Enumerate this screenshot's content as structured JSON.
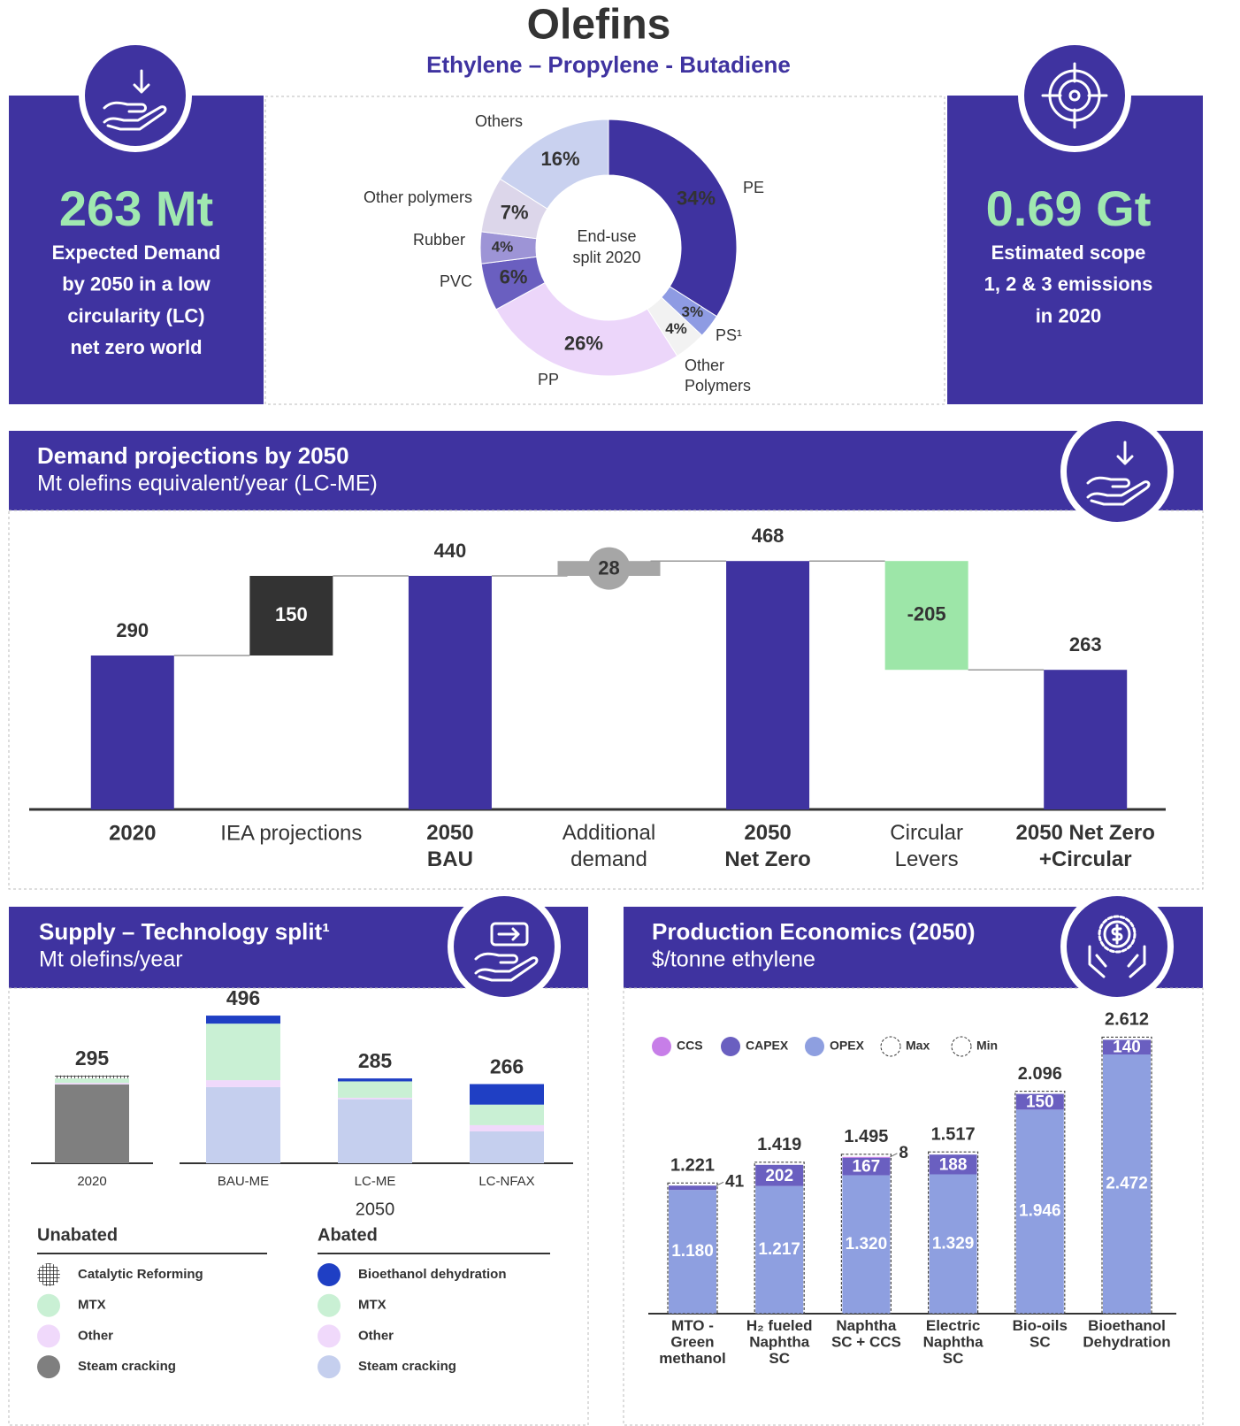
{
  "header": {
    "title": "Olefins",
    "subtitle": "Ethylene – Propylene - Butadiene"
  },
  "left_card": {
    "value": "263 Mt",
    "text": "Expected Demand\nby 2050 in a low\ncircularity (LC)\nnet zero world"
  },
  "right_card": {
    "value": "0.69 Gt",
    "text": "Estimated scope\n1, 2 & 3 emissions\nin 2020"
  },
  "sections": {
    "demand": {
      "title": "Demand projections by 2050",
      "subtitle": "Mt olefins equivalent/year (LC-ME)"
    },
    "supply": {
      "title": "Supply – Technology split¹",
      "subtitle": "Mt olefins/year"
    },
    "economics": {
      "title": "Production Economics (2050)",
      "subtitle": "$/tonne ethylene"
    }
  },
  "chart_data": [
    {
      "type": "donut",
      "center_label": "End-use\nsplit 2020",
      "categories": [
        "PE",
        "PS¹",
        "Other\nPolymers",
        "PP",
        "PVC",
        "Rubber",
        "Other polymers",
        "Others"
      ],
      "values": [
        34,
        3,
        4,
        26,
        6,
        4,
        7,
        16
      ],
      "value_labels": [
        "34%",
        "3%",
        "4%",
        "26%",
        "6%",
        "4%",
        "7%",
        "16%"
      ],
      "colors": [
        "#3f33a0",
        "#8e9be3",
        "#f2f2f2",
        "#ecd6fa",
        "#6a5fc0",
        "#9d94d6",
        "#dcd6ea",
        "#c9d1ef"
      ]
    },
    {
      "type": "waterfall",
      "categories": [
        "2020",
        "IEA projections",
        "2050\nBAU",
        "Additional\ndemand",
        "2050\nNet Zero",
        "Circular\nLevers",
        "2050 Net Zero\n+Circular"
      ],
      "values": [
        290,
        150,
        440,
        28,
        468,
        -205,
        263
      ],
      "measure": [
        "total",
        "relative",
        "total",
        "relative",
        "total",
        "relative",
        "total"
      ],
      "colors": [
        "#3f33a0",
        "#333333",
        "#3f33a0",
        "#a6a6a6",
        "#3f33a0",
        "#9de6a8",
        "#3f33a0"
      ],
      "ylim": [
        0,
        500
      ]
    },
    {
      "type": "stacked-bar",
      "categories": [
        "2020",
        "BAU-ME",
        "LC-ME",
        "LC-NFAX"
      ],
      "x_group_label": "2050",
      "totals": [
        295,
        496,
        285,
        266
      ],
      "ylim": [
        0,
        520
      ],
      "groups": [
        {
          "name": "Unabated",
          "series": [
            {
              "name": "Catalytic Reforming",
              "color": "hatch",
              "values": [
                10,
                0,
                0,
                0
              ]
            },
            {
              "name": "MTX",
              "color": "#c9f0d4",
              "values": [
                15,
                0,
                0,
                0
              ]
            },
            {
              "name": "Other",
              "color": "#f0d9fb",
              "values": [
                5,
                0,
                0,
                0
              ]
            },
            {
              "name": "Steam cracking",
              "color": "#7f7f7f",
              "values": [
                265,
                0,
                0,
                0
              ]
            }
          ]
        },
        {
          "name": "Abated",
          "series": [
            {
              "name": "Bioethanol dehydration",
              "color": "#1f3fc4",
              "values": [
                0,
                27,
                10,
                69
              ]
            },
            {
              "name": "MTX",
              "color": "#c9f0d4",
              "values": [
                0,
                190,
                55,
                69
              ]
            },
            {
              "name": "Other",
              "color": "#f0d9fb",
              "values": [
                0,
                23,
                5,
                21
              ]
            },
            {
              "name": "Steam cracking",
              "color": "#c5cfee",
              "values": [
                0,
                256,
                215,
                107
              ]
            }
          ]
        }
      ]
    },
    {
      "type": "stacked-bar",
      "categories": [
        "MTO -\nGreen\nmethanol",
        "H₂ fueled\nNaphtha\nSC",
        "Naphtha\nSC + CCS",
        "Electric\nNaphtha\nSC",
        "Bio-oils\nSC",
        "Bioethanol\nDehydration"
      ],
      "ylim": [
        0,
        2700
      ],
      "series": [
        {
          "name": "OPEX",
          "color": "#8e9fe0",
          "values": [
            1180,
            1217,
            1320,
            1329,
            1946,
            2472
          ],
          "value_labels": [
            "1.180",
            "1.217",
            "1.320",
            "1.329",
            "1.946",
            "2.472"
          ]
        },
        {
          "name": "CAPEX",
          "color": "#6a5fc0",
          "values": [
            41,
            202,
            167,
            188,
            150,
            140
          ]
        },
        {
          "name": "CCS",
          "color": "#c77ee8",
          "values": [
            null,
            null,
            8,
            null,
            null,
            null
          ]
        }
      ],
      "totals": {
        "name": "Max",
        "values": [
          1221,
          1419,
          1495,
          1517,
          2096,
          2612
        ],
        "value_labels": [
          "1.221",
          "1.419",
          "1.495",
          "1.517",
          "2.096",
          "2.612"
        ]
      },
      "min": {
        "name": "Min"
      }
    }
  ]
}
